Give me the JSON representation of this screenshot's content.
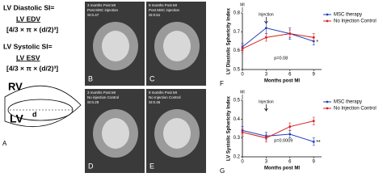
{
  "panel_a": {
    "diastolic_label": "LV Diastolic SI=",
    "diastolic_num": "LV EDV",
    "diastolic_den": "[4/3 × π × (d/2)³]",
    "systolic_label": "LV Systolic SI=",
    "systolic_num": "LV ESV",
    "systolic_den": "[4/3 × π × (d/2)³]",
    "rv": "RV",
    "lv": "LV",
    "d": "d",
    "letter": "A"
  },
  "images": [
    {
      "line1": "3 months Post MI",
      "line2": "Post MSC injection",
      "si": "SI:0.47",
      "letter": "B"
    },
    {
      "line1": "9 months Post MI",
      "line2": "Post MSC injection",
      "si": "SI:0.51",
      "letter": "C"
    },
    {
      "line1": "3 months Post MI",
      "line2": "No injection Control",
      "si": "SI:0.29",
      "letter": "D"
    },
    {
      "line1": "9 months Post MI",
      "line2": "No Injection Control",
      "si": "SI:0.45",
      "letter": "E"
    }
  ],
  "chart_data": [
    {
      "type": "line",
      "panel": "F",
      "y_label": "LV Diastolic Sphericity Index",
      "x_label": "Months post MI",
      "mi": "MI",
      "injection": "Injection",
      "p_value": "p=0.08",
      "star": "*",
      "x": [
        0,
        3,
        6,
        9
      ],
      "xlim": [
        0,
        10
      ],
      "xticks": [
        0,
        3,
        6,
        9
      ],
      "ylim": [
        0.5,
        0.8
      ],
      "yticks": [
        0.5,
        0.6,
        0.7,
        0.8
      ],
      "series": [
        {
          "name": "MSC therapy",
          "color": "#1f3fbf",
          "values": [
            0.62,
            0.72,
            0.69,
            0.65
          ],
          "errors": [
            0.02,
            0.03,
            0.03,
            0.02
          ]
        },
        {
          "name": "No Injection Control",
          "color": "#d42020",
          "values": [
            0.61,
            0.67,
            0.69,
            0.67
          ],
          "errors": [
            0.02,
            0.02,
            0.02,
            0.02
          ]
        }
      ]
    },
    {
      "type": "line",
      "panel": "G",
      "y_label": "LV Systolic Sphericity Index",
      "x_label": "Months post MI",
      "mi": "MI",
      "injection": "Injection",
      "p_value": "p=0.0009",
      "star": "**",
      "x": [
        0,
        3,
        6,
        9
      ],
      "xlim": [
        0,
        10
      ],
      "xticks": [
        0,
        3,
        6,
        9
      ],
      "ylim": [
        0.2,
        0.5
      ],
      "yticks": [
        0.2,
        0.3,
        0.4,
        0.5
      ],
      "series": [
        {
          "name": "MSC therapy",
          "color": "#1f3fbf",
          "values": [
            0.34,
            0.31,
            0.32,
            0.28
          ],
          "errors": [
            0.02,
            0.02,
            0.02,
            0.02
          ]
        },
        {
          "name": "No Injection Control",
          "color": "#d42020",
          "values": [
            0.33,
            0.3,
            0.36,
            0.39
          ],
          "errors": [
            0.02,
            0.02,
            0.02,
            0.02
          ]
        }
      ]
    }
  ]
}
